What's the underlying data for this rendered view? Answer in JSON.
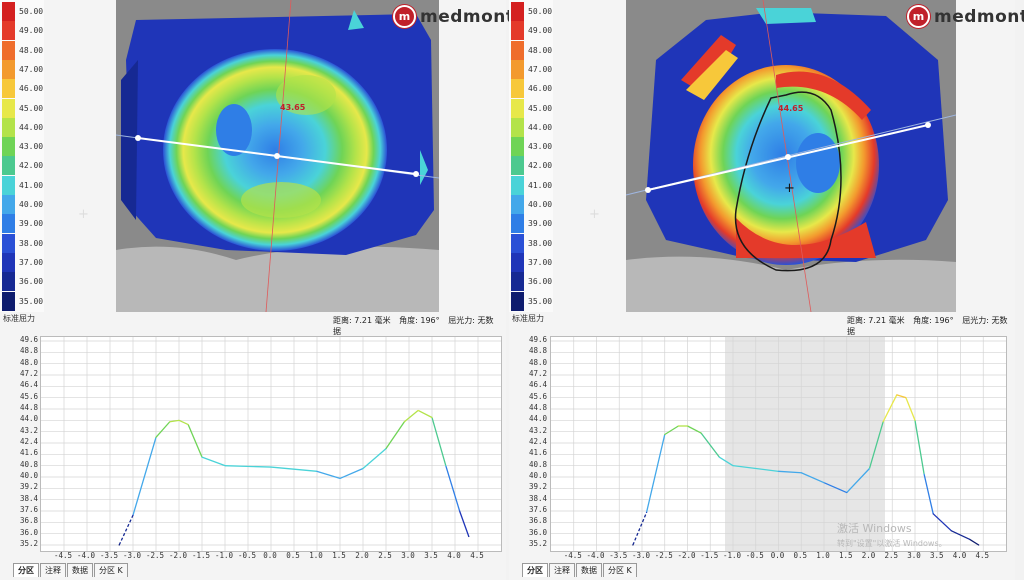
{
  "colors": [
    "#d42020",
    "#e43a2a",
    "#ef6d2c",
    "#f39a2e",
    "#f7c83a",
    "#e7e84a",
    "#b3e34a",
    "#6fd456",
    "#4cc98f",
    "#4ad3d8",
    "#43a8ea",
    "#2f7ee6",
    "#2a50d6",
    "#1f35b8",
    "#162993",
    "#0e1c6e"
  ],
  "brand": "medmont",
  "scale_values": [
    "50.00",
    "49.00",
    "48.00",
    "47.00",
    "46.00",
    "45.00",
    "44.00",
    "43.00",
    "42.00",
    "41.00",
    "40.00",
    "39.00",
    "38.00",
    "37.00",
    "36.00",
    "35.00"
  ],
  "scale_label": "标准屈力",
  "left": {
    "peak_marker": "43.65",
    "info": {
      "distance": "距离: 7.21 毫米",
      "angle": "角度: 196°",
      "power": "屈光力: 无数据"
    },
    "tabs": [
      "分区",
      "注释",
      "数据",
      "分区 K"
    ]
  },
  "right": {
    "peak_marker": "44.65",
    "info": {
      "distance": "距离: 7.21 毫米",
      "angle": "角度: 196°",
      "power": "屈光力: 无数据"
    },
    "tabs": [
      "分区",
      "注释",
      "数据",
      "分区 K"
    ],
    "watermark": "激活 Windows",
    "watermark_sub": "转到\"设置\"以激活 Windows。"
  },
  "profile_y_ticks": [
    "49.6",
    "48.8",
    "48.0",
    "47.2",
    "46.4",
    "45.6",
    "44.8",
    "44.0",
    "43.2",
    "42.4",
    "41.6",
    "40.8",
    "40.0",
    "39.2",
    "38.4",
    "37.6",
    "36.8",
    "36.0",
    "35.2"
  ],
  "profile_x_ticks": [
    "-4.5",
    "-4.0",
    "-3.5",
    "-3.0",
    "-2.5",
    "-2.0",
    "-1.5",
    "-1.0",
    "-0.5",
    "0.0",
    "0.5",
    "1.0",
    "1.5",
    "2.0",
    "2.5",
    "3.0",
    "3.5",
    "4.0",
    "4.5"
  ],
  "chart_data": [
    {
      "type": "line",
      "x": [
        -3.3,
        -3.0,
        -2.5,
        -2.2,
        -2.0,
        -1.8,
        -1.5,
        -1.0,
        0.0,
        1.0,
        1.5,
        2.0,
        2.5,
        2.9,
        3.2,
        3.5,
        3.8,
        4.1,
        4.3
      ],
      "y": [
        35.2,
        37.3,
        42.8,
        43.9,
        44.0,
        43.7,
        41.4,
        40.8,
        40.7,
        40.4,
        39.9,
        40.6,
        42.0,
        43.9,
        44.7,
        44.2,
        40.8,
        37.6,
        35.8
      ],
      "ylim": [
        35.2,
        49.6
      ],
      "xlim": [
        -5.0,
        5.0
      ]
    },
    {
      "type": "line",
      "x": [
        -3.2,
        -2.9,
        -2.5,
        -2.2,
        -2.0,
        -1.7,
        -1.3,
        -1.0,
        0.0,
        0.5,
        1.0,
        1.5,
        2.0,
        2.3,
        2.6,
        2.8,
        3.0,
        3.2,
        3.4,
        3.8,
        4.2,
        4.4
      ],
      "y": [
        35.2,
        37.5,
        43.0,
        43.6,
        43.6,
        43.1,
        41.4,
        40.8,
        40.4,
        40.3,
        39.6,
        38.9,
        40.6,
        43.9,
        45.8,
        45.6,
        44.0,
        40.2,
        37.4,
        36.2,
        35.6,
        35.2
      ],
      "ylim": [
        35.2,
        49.6
      ],
      "xlim": [
        -5.0,
        5.0
      ]
    }
  ]
}
